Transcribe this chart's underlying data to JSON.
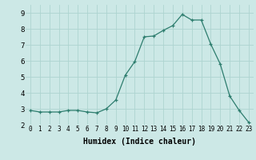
{
  "x": [
    0,
    1,
    2,
    3,
    4,
    5,
    6,
    7,
    8,
    9,
    10,
    11,
    12,
    13,
    14,
    15,
    16,
    17,
    18,
    19,
    20,
    21,
    22,
    23
  ],
  "y": [
    2.9,
    2.8,
    2.8,
    2.8,
    2.9,
    2.9,
    2.8,
    2.75,
    3.0,
    3.55,
    5.1,
    5.95,
    7.5,
    7.55,
    7.9,
    8.2,
    8.9,
    8.55,
    8.55,
    7.05,
    5.8,
    3.8,
    2.9,
    2.15
  ],
  "xlabel": "Humidex (Indice chaleur)",
  "ylim": [
    2,
    9.5
  ],
  "xlim": [
    -0.5,
    23.5
  ],
  "line_color": "#2d7d6e",
  "bg_color": "#cce8e6",
  "grid_color": "#aed4d0",
  "marker": "+",
  "xlabel_fontsize": 7,
  "ytick_fontsize": 6.5,
  "xtick_fontsize": 5.5
}
